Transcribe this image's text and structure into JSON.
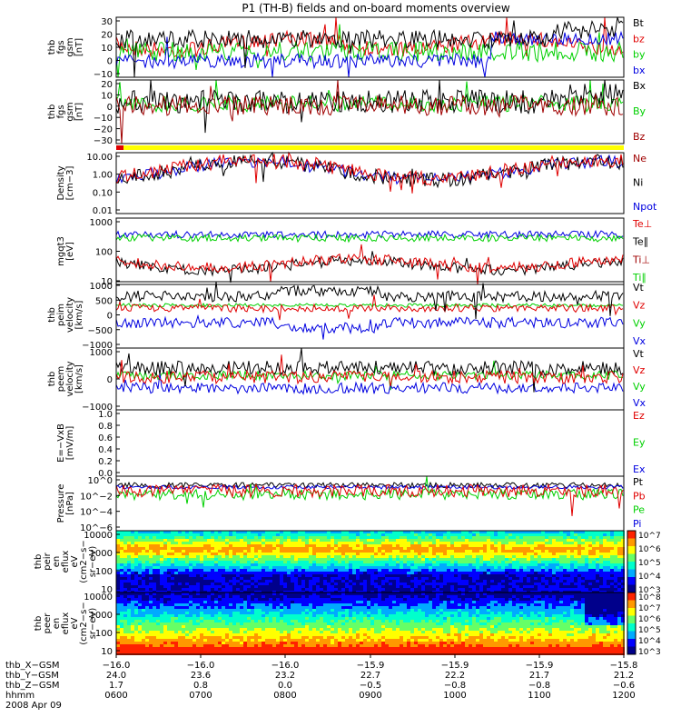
{
  "title": "P1 (TH-B) fields and on-board moments overview",
  "colors": {
    "black": "#000000",
    "red": "#e00000",
    "green": "#00d000",
    "blue": "#0000e0",
    "yellow": "#ffff00",
    "darkred": "#a00000"
  },
  "chart_data": [
    {
      "type": "line",
      "id": "p1",
      "ylabel": [
        "thb",
        "fgs",
        "gsm",
        "[nT]"
      ],
      "yticks": [
        "30",
        "20",
        "10",
        "0",
        "−10"
      ],
      "ylim": [
        -13,
        32
      ],
      "series": [
        {
          "name": "Bt",
          "color": "black"
        },
        {
          "name": "bz",
          "color": "red"
        },
        {
          "name": "by",
          "color": "green"
        },
        {
          "name": "bx",
          "color": "blue"
        }
      ]
    },
    {
      "type": "line",
      "id": "p2",
      "ylabel": [
        "thb",
        "fgs",
        "gsm",
        "[nT]"
      ],
      "yticks": [
        "20",
        "10",
        "0",
        "−10",
        "−20",
        "−30"
      ],
      "ylim": [
        -35,
        22
      ],
      "series": [
        {
          "name": "Bx",
          "color": "black"
        },
        {
          "name": "By",
          "color": "green"
        },
        {
          "name": "Bz",
          "color": "darkred"
        }
      ]
    },
    {
      "type": "line",
      "id": "p3",
      "ylabel": [
        "Density",
        "[cm−3]"
      ],
      "yticks": [
        "10.00",
        "1.00",
        "0.10",
        "0.01"
      ],
      "log": true,
      "series": [
        {
          "name": "Ne",
          "color": "darkred"
        },
        {
          "name": "Ni",
          "color": "black"
        },
        {
          "name": "Npot",
          "color": "blue"
        }
      ]
    },
    {
      "type": "line",
      "id": "p4",
      "ylabel": [
        "mgqt3",
        "[eV]"
      ],
      "yticks": [
        "1000",
        "100",
        "10"
      ],
      "log": true,
      "series": [
        {
          "name": "Te⊥",
          "color": "red"
        },
        {
          "name": "Te∥",
          "color": "black"
        },
        {
          "name": "Ti⊥",
          "color": "darkred"
        },
        {
          "name": "Ti∥",
          "color": "green"
        }
      ]
    },
    {
      "type": "line",
      "id": "p5",
      "ylabel": [
        "thb",
        "peim",
        "velocity",
        "[km/s]"
      ],
      "yticks": [
        "1000",
        "500",
        "0",
        "−500",
        "−1000"
      ],
      "ylim": [
        -1000,
        1000
      ],
      "series": [
        {
          "name": "Vt",
          "color": "black"
        },
        {
          "name": "Vz",
          "color": "red"
        },
        {
          "name": "Vy",
          "color": "green"
        },
        {
          "name": "Vx",
          "color": "blue"
        }
      ]
    },
    {
      "type": "line",
      "id": "p6",
      "ylabel": [
        "thb",
        "peem",
        "velocity",
        "[km/s]"
      ],
      "yticks": [
        "1000",
        "0",
        "−1000"
      ],
      "ylim": [
        -1500,
        1500
      ],
      "series": [
        {
          "name": "Vt",
          "color": "black"
        },
        {
          "name": "Vz",
          "color": "red"
        },
        {
          "name": "Vy",
          "color": "green"
        },
        {
          "name": "Vx",
          "color": "blue"
        }
      ]
    },
    {
      "type": "line",
      "id": "p7",
      "ylabel": [
        "E=−VxB",
        "[mV/m]"
      ],
      "yticks": [
        "1.0",
        "0.8",
        "0.6",
        "0.4",
        "0.2",
        "0.0"
      ],
      "ylim": [
        0,
        1
      ],
      "series": [
        {
          "name": "Ez",
          "color": "red"
        },
        {
          "name": "Ey",
          "color": "green"
        },
        {
          "name": "Ex",
          "color": "blue"
        }
      ]
    },
    {
      "type": "line",
      "id": "p8",
      "ylabel": [
        "Pressure",
        "[nPa]"
      ],
      "yticks": [
        "10^0",
        "10^−2",
        "10^−4",
        "10^−6"
      ],
      "log": true,
      "series": [
        {
          "name": "Pt",
          "color": "black"
        },
        {
          "name": "Pb",
          "color": "red"
        },
        {
          "name": "Pe",
          "color": "green"
        },
        {
          "name": "Pi",
          "color": "blue"
        }
      ]
    },
    {
      "type": "heatmap",
      "id": "p9",
      "ylabel": [
        "thb",
        "peir",
        "en",
        "eflux",
        "eV",
        "(cm2−s−",
        "sr−eV)"
      ],
      "yticks": [
        "10000",
        "1000",
        "100",
        "10"
      ],
      "colorbar": [
        "10^7",
        "10^6",
        "10^5",
        "10^4",
        "10^3"
      ]
    },
    {
      "type": "heatmap",
      "id": "p10",
      "ylabel": [
        "thb",
        "peer",
        "en",
        "eflux",
        "eV",
        "(cm2−s−",
        "sr−eV)"
      ],
      "yticks": [
        "10000",
        "1000",
        "100",
        "10"
      ],
      "colorbar": [
        "10^8",
        "10^7",
        "10^6",
        "10^5",
        "10^4",
        "10^3"
      ]
    }
  ],
  "orbit": {
    "rows": [
      {
        "label": "thb_X−GSM",
        "values": [
          "−16.0",
          "−16.0",
          "−16.0",
          "−15.9",
          "−15.9",
          "−15.9",
          "−15.8"
        ]
      },
      {
        "label": "thb_Y−GSM",
        "values": [
          "24.0",
          "23.6",
          "23.2",
          "22.7",
          "22.2",
          "21.7",
          "21.2"
        ]
      },
      {
        "label": "thb_Z−GSM",
        "values": [
          "1.7",
          "0.8",
          "0.0",
          "−0.5",
          "−0.8",
          "−0.8",
          "−0.6"
        ]
      },
      {
        "label": "hhmm",
        "values": [
          "0600",
          "0700",
          "0800",
          "0900",
          "1000",
          "1100",
          "1200"
        ]
      }
    ],
    "date": "2008 Apr 09"
  }
}
